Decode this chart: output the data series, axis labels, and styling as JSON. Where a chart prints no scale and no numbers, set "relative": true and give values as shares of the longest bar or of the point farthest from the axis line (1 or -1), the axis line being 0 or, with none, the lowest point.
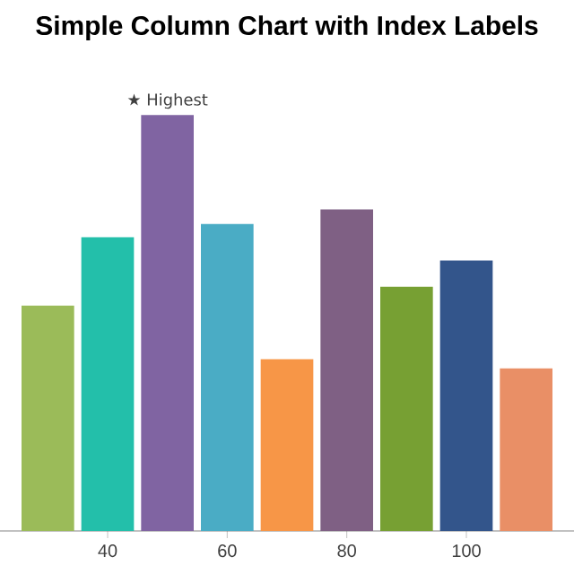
{
  "chart_data": {
    "type": "bar",
    "title": "Simple Column Chart with Index Labels",
    "x": [
      30,
      40,
      50,
      60,
      70,
      80,
      90,
      100,
      110
    ],
    "values": [
      0.542,
      0.706,
      1,
      0.738,
      0.413,
      0.773,
      0.587,
      0.65,
      0.391
    ],
    "colors": [
      "#9bbb59",
      "#23bfaa",
      "#8064a2",
      "#4aacc5",
      "#f79647",
      "#7f6084",
      "#77a033",
      "#33558b",
      "#e98f66"
    ],
    "relative": true,
    "xlim": [
      22,
      118
    ],
    "xticks": [
      40,
      60,
      80,
      100
    ],
    "annotations": [
      {
        "text": "★ Highest",
        "x": 50,
        "y": 1
      }
    ]
  }
}
